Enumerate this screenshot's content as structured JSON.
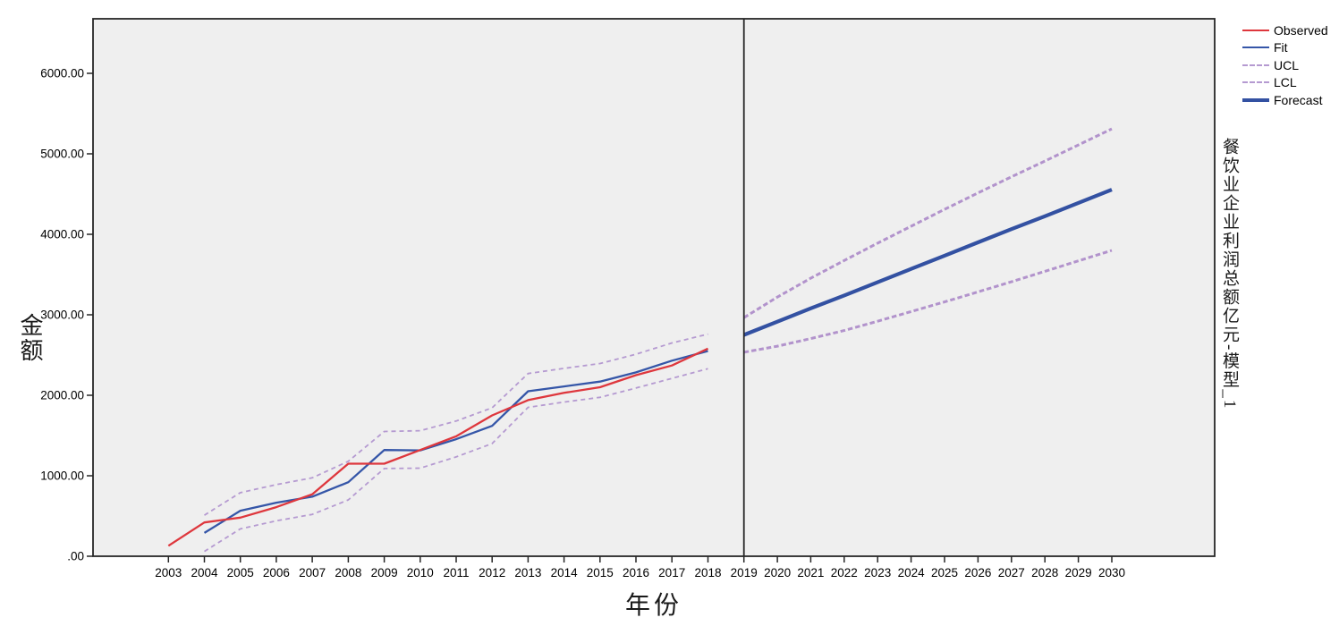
{
  "figure": {
    "y_axis_title": "金额",
    "x_axis_title": "年份",
    "right_label": "餐饮业企业利润总额亿元-模型_1"
  },
  "legend": {
    "items": [
      {
        "label": "Observed",
        "style": "solid",
        "color": "#de373d",
        "thick": false
      },
      {
        "label": "Fit",
        "style": "solid",
        "color": "#3556a8",
        "thick": false
      },
      {
        "label": "UCL",
        "style": "dashed",
        "color": "#b59ad1",
        "thick": false
      },
      {
        "label": "LCL",
        "style": "dashed",
        "color": "#b59ad1",
        "thick": false
      },
      {
        "label": "Forecast",
        "style": "solid",
        "color": "#3351a2",
        "thick": true
      }
    ]
  },
  "chart_data": {
    "type": "line",
    "title": "",
    "xlabel": "年份",
    "ylabel": "金额",
    "right_axis_label": "餐饮业企业利润总额亿元-模型_1",
    "plot_bg": "#efefef",
    "frame_color": "#262626",
    "grid": false,
    "legend_position": "top-right",
    "separator_year": 2019,
    "x_ticks": [
      2003,
      2004,
      2005,
      2006,
      2007,
      2008,
      2009,
      2010,
      2011,
      2012,
      2013,
      2014,
      2015,
      2016,
      2017,
      2018,
      2019,
      2020,
      2021,
      2022,
      2023,
      2024,
      2025,
      2026,
      2027,
      2028,
      2029,
      2030
    ],
    "y_ticks": [
      ".00",
      "1000.00",
      "2000.00",
      "3000.00",
      "4000.00",
      "5000.00",
      "6000.00"
    ],
    "y_tick_values": [
      0,
      1000,
      2000,
      3000,
      4000,
      5000,
      6000
    ],
    "ylim": [
      0,
      6690
    ],
    "series": [
      {
        "id": "ucl",
        "name": "UCL",
        "color": "#b59ad1",
        "width": 1.8,
        "dash": "5,4",
        "x": [
          2004,
          2005,
          2006,
          2007,
          2008,
          2009,
          2010,
          2011,
          2012,
          2013,
          2014,
          2015,
          2016,
          2017,
          2018
        ],
        "y": [
          510,
          790,
          890,
          975,
          1180,
          1550,
          1560,
          1680,
          1845,
          2270,
          2335,
          2395,
          2510,
          2650,
          2760
        ]
      },
      {
        "id": "lcl",
        "name": "LCL",
        "color": "#b59ad1",
        "width": 1.8,
        "dash": "5,4",
        "x": [
          2004,
          2005,
          2006,
          2007,
          2008,
          2009,
          2010,
          2011,
          2012,
          2013,
          2014,
          2015,
          2016,
          2017,
          2018
        ],
        "y": [
          60,
          340,
          440,
          520,
          700,
          1090,
          1095,
          1235,
          1400,
          1850,
          1915,
          1975,
          2090,
          2210,
          2330
        ]
      },
      {
        "id": "ucl-forecast",
        "name": "UCL (forecast)",
        "color": "#b293cc",
        "width": 3,
        "dash": "5.5,3",
        "x": [
          2019,
          2020,
          2021,
          2022,
          2023,
          2024,
          2025,
          2026,
          2027,
          2028,
          2029,
          2030
        ],
        "y": [
          2965,
          3220,
          3455,
          3675,
          3890,
          4100,
          4310,
          4515,
          4715,
          4910,
          5110,
          5310
        ]
      },
      {
        "id": "lcl-forecast",
        "name": "LCL (forecast)",
        "color": "#b293cc",
        "width": 3,
        "dash": "5.5,3",
        "x": [
          2019,
          2020,
          2021,
          2022,
          2023,
          2024,
          2025,
          2026,
          2027,
          2028,
          2029,
          2030
        ],
        "y": [
          2535,
          2610,
          2705,
          2805,
          2920,
          3040,
          3160,
          3285,
          3410,
          3540,
          3670,
          3800
        ]
      },
      {
        "id": "fit",
        "name": "Fit",
        "color": "#3556a8",
        "width": 2.3,
        "dash": null,
        "x": [
          2004,
          2005,
          2006,
          2007,
          2008,
          2009,
          2010,
          2011,
          2012,
          2013,
          2014,
          2015,
          2016,
          2017,
          2018
        ],
        "y": [
          290,
          565,
          665,
          740,
          920,
          1320,
          1315,
          1455,
          1620,
          2050,
          2110,
          2170,
          2285,
          2430,
          2550
        ]
      },
      {
        "id": "observed",
        "name": "Observed",
        "color": "#de373d",
        "width": 2.3,
        "dash": null,
        "x": [
          2003,
          2004,
          2005,
          2006,
          2007,
          2008,
          2009,
          2010,
          2011,
          2012,
          2013,
          2014,
          2015,
          2016,
          2017,
          2018
        ],
        "y": [
          130,
          420,
          480,
          610,
          770,
          1150,
          1150,
          1320,
          1490,
          1750,
          1940,
          2030,
          2100,
          2250,
          2370,
          2580
        ]
      },
      {
        "id": "forecast",
        "name": "Forecast",
        "color": "#3351a2",
        "width": 4.2,
        "dash": null,
        "x": [
          2019,
          2020,
          2021,
          2022,
          2023,
          2024,
          2025,
          2026,
          2027,
          2028,
          2029,
          2030
        ],
        "y": [
          2750,
          2915,
          3080,
          3240,
          3405,
          3570,
          3735,
          3900,
          4065,
          4225,
          4390,
          4555
        ]
      }
    ]
  }
}
